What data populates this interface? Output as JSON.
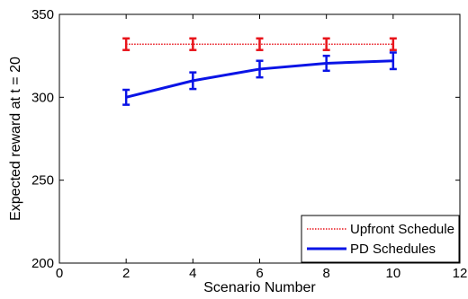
{
  "chart_data": {
    "type": "line",
    "title": "",
    "xlabel": "Scenario Number",
    "ylabel": "Expected reward at t = 20",
    "xlim": [
      0,
      12
    ],
    "ylim": [
      200,
      350
    ],
    "xticks": [
      0,
      2,
      4,
      6,
      8,
      10,
      12
    ],
    "yticks": [
      200,
      250,
      300,
      350
    ],
    "x_tick_labels": [
      "0",
      "2",
      "4",
      "6",
      "8",
      "10",
      "12"
    ],
    "y_tick_labels": [
      "200",
      "250",
      "300",
      "350"
    ],
    "grid": false,
    "legend_position": "bottom-right",
    "series": [
      {
        "name": "Upfront Schedule",
        "style": "dotted",
        "color": "#e8141b",
        "x": [
          2,
          4,
          6,
          8,
          10
        ],
        "y": [
          332,
          332,
          332,
          332,
          332
        ],
        "err": [
          3.5,
          3.5,
          3.5,
          3.5,
          3.5
        ]
      },
      {
        "name": "PD Schedules",
        "style": "solid",
        "color": "#0a14e6",
        "x": [
          2,
          4,
          6,
          8,
          10
        ],
        "y": [
          300,
          310,
          317,
          320.5,
          322
        ],
        "err": [
          4.5,
          5,
          5,
          4.5,
          5
        ]
      }
    ]
  }
}
